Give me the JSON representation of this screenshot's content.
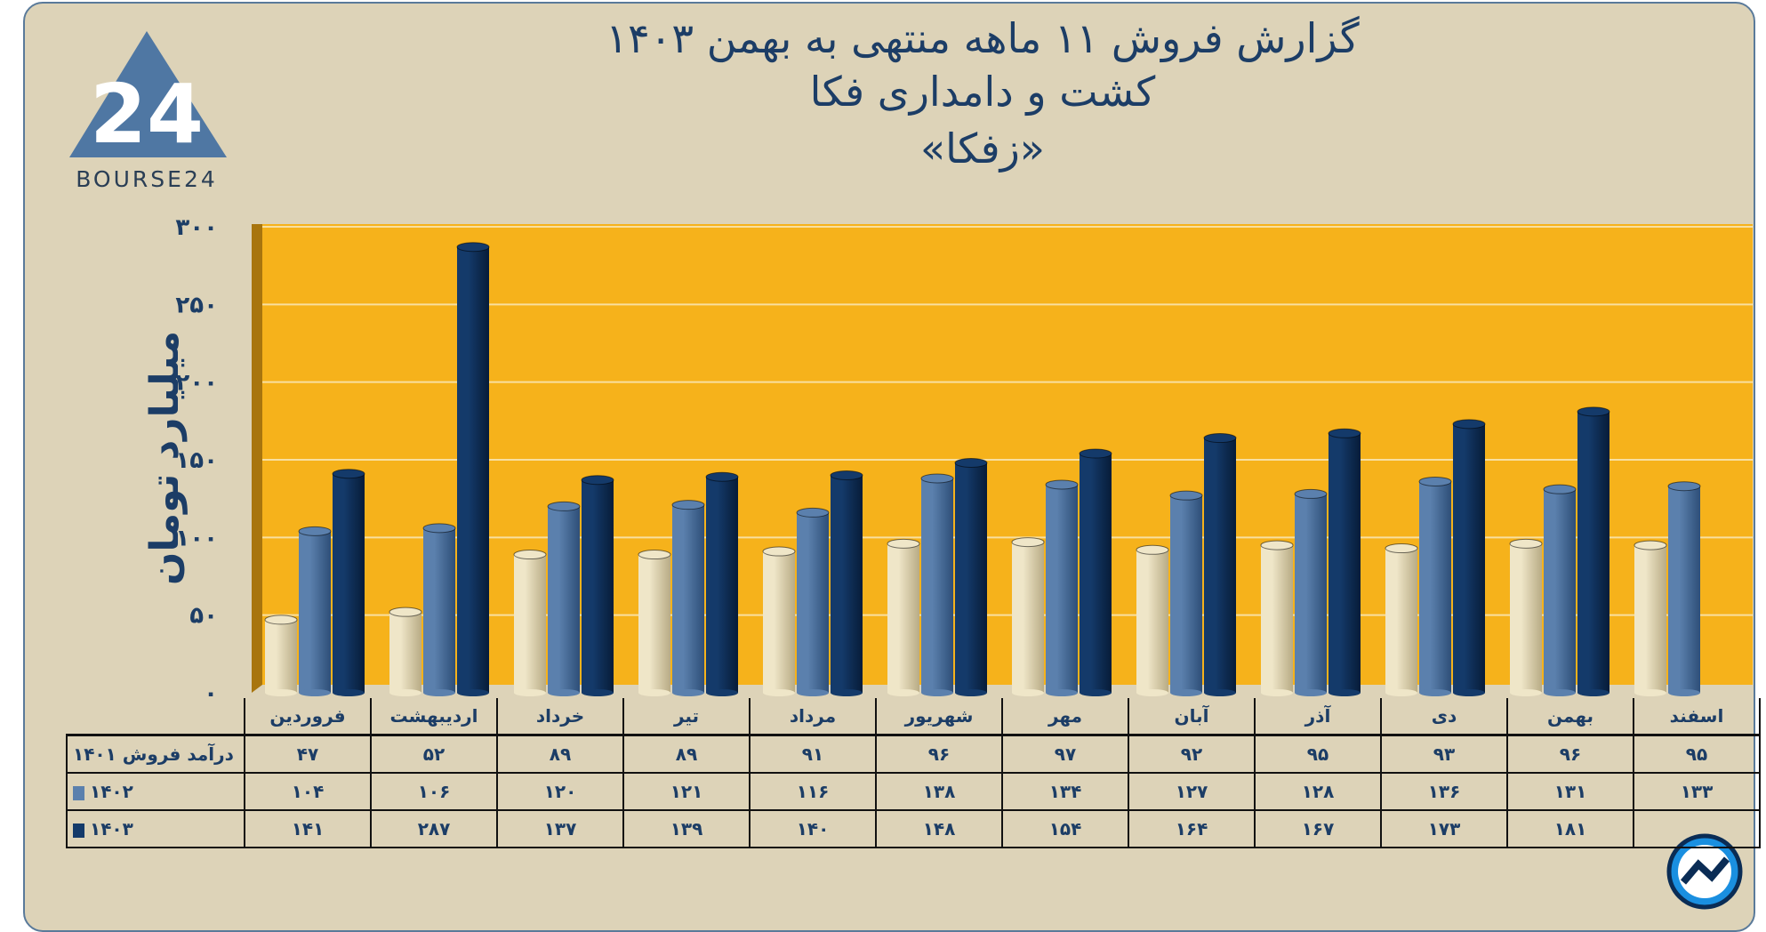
{
  "title": {
    "line1": "گزارش  فروش ۱۱ ماهه منتهی به بهمن ۱۴۰۳",
    "line2": "کشت و دامداری فکا",
    "line3": "«زفکا»"
  },
  "logo": {
    "text": "BOURSE24",
    "mark": "24"
  },
  "colors": {
    "bg": "#ddd3b8",
    "plot": "#f6b21b",
    "s1401": "#efe6c8",
    "s1402": "#5b80ad",
    "s1403": "#143a6a"
  },
  "chart_data": {
    "type": "bar",
    "ylabel": "میلیارد تومان",
    "ylim": [
      0,
      300
    ],
    "yticks": [
      0,
      50,
      100,
      150,
      200,
      250,
      300
    ],
    "ytick_labels": [
      "۰",
      "۵۰",
      "۱۰۰",
      "۱۵۰",
      "۲۰۰",
      "۲۵۰",
      "۳۰۰"
    ],
    "grid": true,
    "categories": [
      "فروردین",
      "اردیبهشت",
      "خرداد",
      "تیر",
      "مرداد",
      "شهریور",
      "مهر",
      "آبان",
      "آذر",
      "دی",
      "بهمن",
      "اسفند"
    ],
    "series": [
      {
        "name": "درآمد فروش ۱۴۰۱",
        "values": [
          47,
          52,
          89,
          89,
          91,
          96,
          97,
          92,
          95,
          93,
          96,
          95
        ],
        "labels": [
          "۴۷",
          "۵۲",
          "۸۹",
          "۸۹",
          "۹۱",
          "۹۶",
          "۹۷",
          "۹۲",
          "۹۵",
          "۹۳",
          "۹۶",
          "۹۵"
        ]
      },
      {
        "name": "۱۴۰۲",
        "values": [
          104,
          106,
          120,
          121,
          116,
          138,
          134,
          127,
          128,
          136,
          131,
          133
        ],
        "labels": [
          "۱۰۴",
          "۱۰۶",
          "۱۲۰",
          "۱۲۱",
          "۱۱۶",
          "۱۳۸",
          "۱۳۴",
          "۱۲۷",
          "۱۲۸",
          "۱۳۶",
          "۱۳۱",
          "۱۳۳"
        ]
      },
      {
        "name": "۱۴۰۳",
        "values": [
          141,
          287,
          137,
          139,
          140,
          148,
          154,
          164,
          167,
          173,
          181,
          null
        ],
        "labels": [
          "۱۴۱",
          "۲۸۷",
          "۱۳۷",
          "۱۳۹",
          "۱۴۰",
          "۱۴۸",
          "۱۵۴",
          "۱۶۴",
          "۱۶۷",
          "۱۷۳",
          "۱۸۱",
          ""
        ]
      }
    ]
  }
}
